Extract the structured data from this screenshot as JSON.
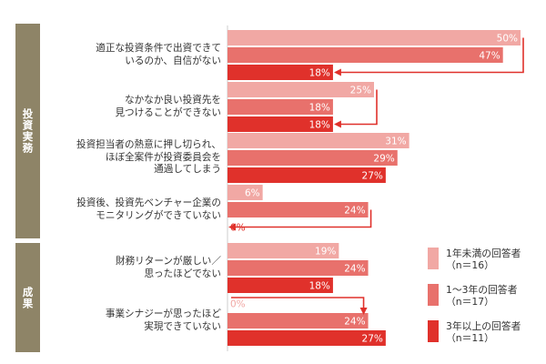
{
  "chart_data": {
    "type": "bar",
    "orientation": "horizontal",
    "value_unit": "%",
    "xlim": [
      0,
      50
    ],
    "sections": [
      {
        "label": "投資実務",
        "questions": [
          0,
          1,
          2,
          3
        ]
      },
      {
        "label": "成果",
        "questions": [
          4,
          5
        ]
      }
    ],
    "categories": [
      [
        "適正な投資条件で出資できて",
        "いるのか、自信がない"
      ],
      [
        "なかなか良い投資先を",
        "見つけることができない"
      ],
      [
        "投資担当者の熱意に押し切られ、",
        "ほぼ全案件が投資委員会を",
        "通過してしまう"
      ],
      [
        "投資後、投資先ベンチャー企業の",
        "モニタリングができていない"
      ],
      [
        "財務リターンが厳しい／",
        "思ったほどでない"
      ],
      [
        "事業シナジーが思ったほど",
        "実現できていない"
      ]
    ],
    "series": [
      {
        "name": [
          "1年未満の回答者",
          "（n＝16）"
        ],
        "color": "#f1a8a4",
        "values": [
          50,
          25,
          31,
          6,
          19,
          0
        ],
        "labels": [
          "50%",
          "25%",
          "31%",
          "6%",
          "19%",
          "0%"
        ]
      },
      {
        "name": [
          "1〜3年の回答者",
          "（n＝17）"
        ],
        "color": "#e8716c",
        "values": [
          47,
          18,
          29,
          24,
          24,
          24
        ],
        "labels": [
          "47%",
          "18%",
          "29%",
          "24%",
          "24%",
          "24%"
        ]
      },
      {
        "name": [
          "3年以上の回答者",
          "（n＝11）"
        ],
        "color": "#e0312b",
        "values": [
          18,
          18,
          27,
          0,
          18,
          27
        ],
        "labels": [
          "18%",
          "18%",
          "27%",
          "0%",
          "18%",
          "27%"
        ]
      }
    ],
    "arrows": [
      {
        "question": 0,
        "from_series": 0,
        "to_series": 2
      },
      {
        "question": 1,
        "from_series": 0,
        "to_series": 2
      },
      {
        "question": 3,
        "from_series": 1,
        "to_series": 2
      },
      {
        "question": 5,
        "from_series": 0,
        "to_series": 1
      }
    ],
    "grid": false,
    "legend_position": "right"
  }
}
